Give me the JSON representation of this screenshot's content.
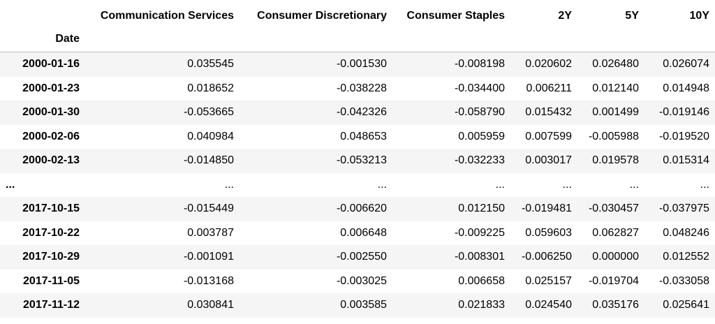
{
  "table": {
    "columns": [
      "Communication Services",
      "Consumer Discretionary",
      "Consumer Staples",
      "2Y",
      "5Y",
      "10Y"
    ],
    "index_name": "Date",
    "rows": [
      {
        "index": "2000-01-16",
        "cells": [
          "0.035545",
          "-0.001530",
          "-0.008198",
          "0.020602",
          "0.026480",
          "0.026074"
        ]
      },
      {
        "index": "2000-01-23",
        "cells": [
          "0.018652",
          "-0.038228",
          "-0.034400",
          "0.006211",
          "0.012140",
          "0.014948"
        ]
      },
      {
        "index": "2000-01-30",
        "cells": [
          "-0.053665",
          "-0.042326",
          "-0.058790",
          "0.015432",
          "0.001499",
          "-0.019146"
        ]
      },
      {
        "index": "2000-02-06",
        "cells": [
          "0.040984",
          "0.048653",
          "0.005959",
          "0.007599",
          "-0.005988",
          "-0.019520"
        ]
      },
      {
        "index": "2000-02-13",
        "cells": [
          "-0.014850",
          "-0.053213",
          "-0.032233",
          "0.003017",
          "0.019578",
          "0.015314"
        ]
      },
      {
        "index": "...",
        "cells": [
          "...",
          "...",
          "...",
          "...",
          "...",
          "..."
        ]
      },
      {
        "index": "2017-10-15",
        "cells": [
          "-0.015449",
          "-0.006620",
          "0.012150",
          "-0.019481",
          "-0.030457",
          "-0.037975"
        ]
      },
      {
        "index": "2017-10-22",
        "cells": [
          "0.003787",
          "0.006648",
          "-0.009225",
          "0.059603",
          "0.062827",
          "0.048246"
        ]
      },
      {
        "index": "2017-10-29",
        "cells": [
          "-0.001091",
          "-0.002550",
          "-0.008301",
          "-0.006250",
          "0.000000",
          "0.012552"
        ]
      },
      {
        "index": "2017-11-05",
        "cells": [
          "-0.013168",
          "-0.003025",
          "0.006658",
          "0.025157",
          "-0.019704",
          "-0.033058"
        ]
      },
      {
        "index": "2017-11-12",
        "cells": [
          "0.030841",
          "0.003585",
          "0.021833",
          "0.024540",
          "0.035176",
          "0.025641"
        ]
      }
    ]
  },
  "colors": {
    "stripe": "#f5f5f5",
    "border": "#bdbdbd",
    "text": "#000000"
  }
}
